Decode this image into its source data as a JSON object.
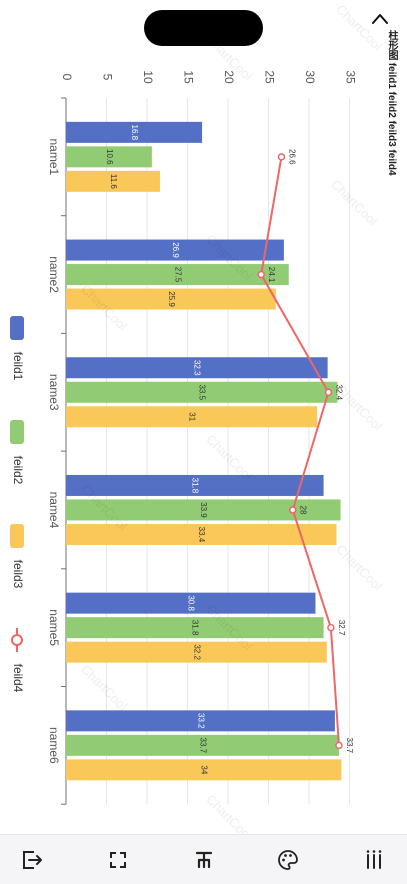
{
  "header": {
    "title": "柱形图 feild1 feild2 feild3 feild4"
  },
  "watermark": "ChartCool",
  "toolbar": {
    "items": [
      {
        "icon": "export-icon"
      },
      {
        "icon": "fullscreen-icon"
      },
      {
        "icon": "sort-icon"
      },
      {
        "icon": "palette-icon"
      },
      {
        "icon": "columns-icon"
      }
    ]
  },
  "colors": {
    "feild1": "#5470c6",
    "feild2": "#91cc75",
    "feild3": "#fac858",
    "feild4": "#ee6666"
  },
  "chart_data": {
    "type": "bar",
    "orientation": "rotated 90° clockwise",
    "categories": [
      "name1",
      "name2",
      "name3",
      "name4",
      "name5",
      "name6"
    ],
    "series": [
      {
        "name": "feild1",
        "type": "bar",
        "values": [
          16.8,
          26.9,
          32.3,
          31.8,
          30.8,
          33.2
        ]
      },
      {
        "name": "feild2",
        "type": "bar",
        "values": [
          10.6,
          27.5,
          33.5,
          33.9,
          31.8,
          33.7
        ]
      },
      {
        "name": "feild3",
        "type": "bar",
        "values": [
          11.6,
          25.9,
          31,
          33.4,
          32.2,
          34
        ]
      },
      {
        "name": "feild4",
        "type": "line",
        "values": [
          26.6,
          24.1,
          32.4,
          28,
          32.7,
          33.7
        ]
      }
    ],
    "ylim": [
      0,
      35
    ],
    "yticks": [
      0,
      5,
      10,
      15,
      20,
      25,
      30,
      35
    ],
    "grid": true,
    "legend": "left-center"
  }
}
